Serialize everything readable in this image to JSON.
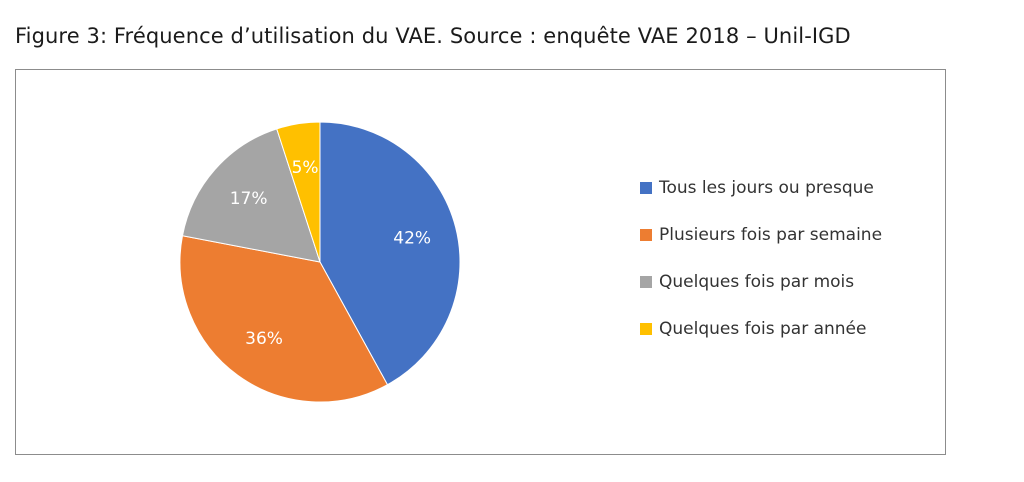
{
  "caption": "Figure 3: Fréquence d’utilisation du VAE. Source : enquête VAE 2018 – Unil-IGD",
  "chart_data": {
    "type": "pie",
    "title": "",
    "categories": [
      "Tous les jours ou presque",
      "Plusieurs fois par semaine",
      "Quelques fois par mois",
      "Quelques fois par année"
    ],
    "values": [
      42,
      36,
      17,
      5
    ],
    "labels": [
      "42%",
      "36%",
      "17%",
      "5%"
    ],
    "colors": [
      "#4472C4",
      "#ED7D31",
      "#A5A5A5",
      "#FFC000"
    ],
    "legend_position": "right"
  }
}
